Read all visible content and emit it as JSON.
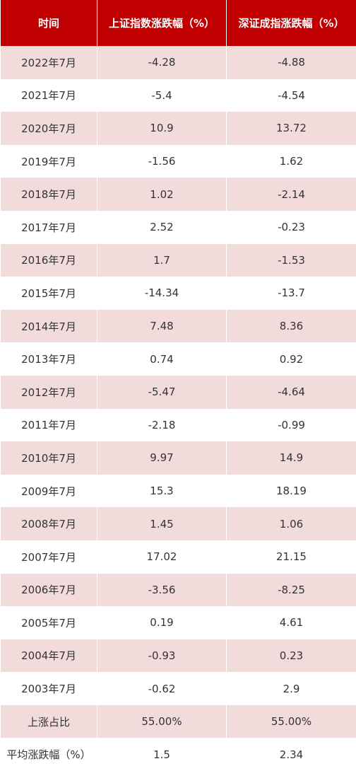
{
  "table": {
    "header": [
      "时间",
      "上证指数涨跌幅（%）",
      "深证成指涨跌幅（%）"
    ],
    "rows": [
      [
        "2022年7月",
        "-4.28",
        "-4.88"
      ],
      [
        "2021年7月",
        "-5.4",
        "-4.54"
      ],
      [
        "2020年7月",
        "10.9",
        "13.72"
      ],
      [
        "2019年7月",
        "-1.56",
        "1.62"
      ],
      [
        "2018年7月",
        "1.02",
        "-2.14"
      ],
      [
        "2017年7月",
        "2.52",
        "-0.23"
      ],
      [
        "2016年7月",
        "1.7",
        "-1.53"
      ],
      [
        "2015年7月",
        "-14.34",
        "-13.7"
      ],
      [
        "2014年7月",
        "7.48",
        "8.36"
      ],
      [
        "2013年7月",
        "0.74",
        "0.92"
      ],
      [
        "2012年7月",
        "-5.47",
        "-4.64"
      ],
      [
        "2011年7月",
        "-2.18",
        "-0.99"
      ],
      [
        "2010年7月",
        "9.97",
        "14.9"
      ],
      [
        "2009年7月",
        "15.3",
        "18.19"
      ],
      [
        "2008年7月",
        "1.45",
        "1.06"
      ],
      [
        "2007年7月",
        "17.02",
        "21.15"
      ],
      [
        "2006年7月",
        "-3.56",
        "-8.25"
      ],
      [
        "2005年7月",
        "0.19",
        "4.61"
      ],
      [
        "2004年7月",
        "-0.93",
        "0.23"
      ],
      [
        "2003年7月",
        "-0.62",
        "2.9"
      ],
      [
        "上涨占比",
        "55.00%",
        "55.00%"
      ],
      [
        "平均涨跌幅（%）",
        "1.5",
        "2.34"
      ]
    ]
  }
}
